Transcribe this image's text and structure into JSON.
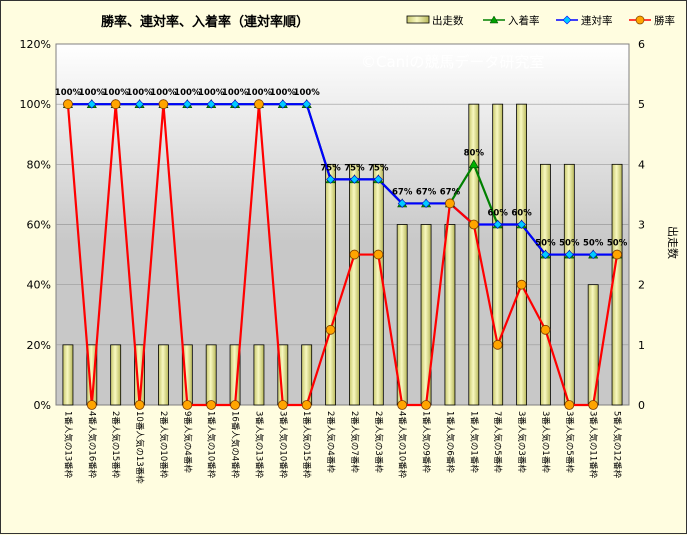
{
  "chart_data": {
    "type": "bar+line",
    "title": "勝率、連対率、入着率（連対率順）",
    "watermark": "©Caniの競馬データ研究室",
    "y2label": "出走数",
    "ylim_left": [
      0,
      120
    ],
    "ylim_right": [
      0,
      6
    ],
    "left_ticks": [
      "0%",
      "20%",
      "40%",
      "60%",
      "80%",
      "100%",
      "120%"
    ],
    "right_ticks": [
      "0",
      "1",
      "2",
      "3",
      "4",
      "5",
      "6"
    ],
    "legend_position": "top-right",
    "categories": [
      "1番人気の13番枠",
      "4番人気の16番枠",
      "2番人気の15番枠",
      "10番人気の13番枠",
      "2番人気の10番枠",
      "9番人気の4番枠",
      "1番人気の10番枠",
      "16番人気の4番枠",
      "3番人気の13番枠",
      "3番人気の10番枠",
      "1番人気の15番枠",
      "2番人気の4番枠",
      "2番人気の7番枠",
      "2番人気の3番枠",
      "4番人気の10番枠",
      "1番人気の9番枠",
      "1番人気の6番枠",
      "1番人気の1番枠",
      "7番人気の5番枠",
      "3番人気の3番枠",
      "3番人気の1番枠",
      "3番人気の5番枠",
      "3番人気の11番枠",
      "5番人気の12番枠"
    ],
    "series": [
      {
        "name": "出走数",
        "kind": "bar",
        "axis": "right",
        "color": "#eeee99",
        "values": [
          1,
          1,
          1,
          1,
          1,
          1,
          1,
          1,
          1,
          1,
          1,
          4,
          4,
          4,
          3,
          3,
          3,
          5,
          5,
          5,
          4,
          4,
          2,
          4
        ]
      },
      {
        "name": "入着率",
        "kind": "line",
        "axis": "left",
        "color": "#008000",
        "values": [
          100,
          100,
          100,
          100,
          100,
          100,
          100,
          100,
          100,
          100,
          100,
          75,
          75,
          75,
          67,
          67,
          67,
          80,
          60,
          60,
          50,
          50,
          50,
          50
        ]
      },
      {
        "name": "連対率",
        "kind": "line",
        "axis": "left",
        "color": "#0000ff",
        "values": [
          100,
          100,
          100,
          100,
          100,
          100,
          100,
          100,
          100,
          100,
          100,
          75,
          75,
          75,
          67,
          67,
          67,
          60,
          60,
          60,
          50,
          50,
          50,
          50
        ]
      },
      {
        "name": "勝率",
        "kind": "line",
        "axis": "left",
        "color": "#ff0000",
        "values": [
          100,
          0,
          100,
          0,
          100,
          0,
          0,
          0,
          100,
          0,
          0,
          25,
          50,
          50,
          0,
          0,
          67,
          60,
          20,
          40,
          25,
          0,
          0,
          50
        ]
      }
    ],
    "data_labels": [
      "100%",
      "100%",
      "100%",
      "100%",
      "100%",
      "100%",
      "100%",
      "100%",
      "100%",
      "100%",
      "100%",
      "75%",
      "75%",
      "75%",
      "67%",
      "67%",
      "67%",
      "80%",
      "60%",
      "60%",
      "50%",
      "50%",
      "50%",
      "50%"
    ]
  }
}
